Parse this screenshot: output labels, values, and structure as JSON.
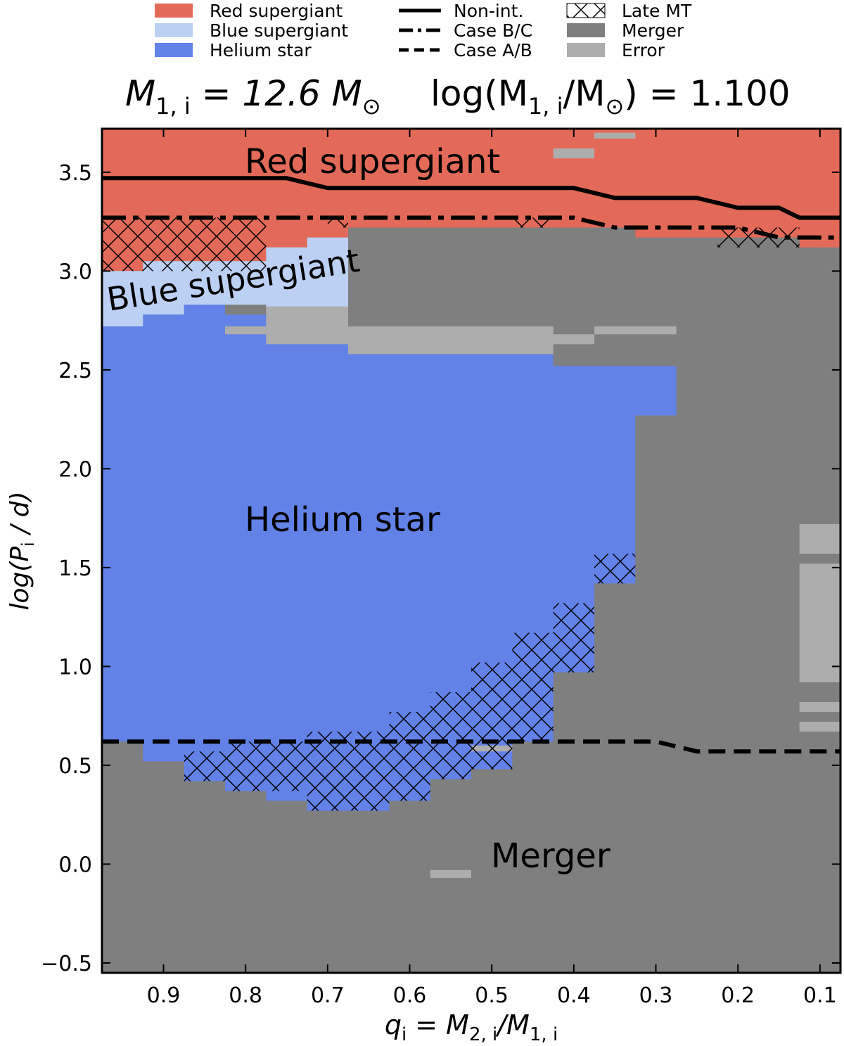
{
  "legend": {
    "regions": [
      {
        "label": "Red supergiant",
        "color": "#e36a59"
      },
      {
        "label": "Blue supergiant",
        "color": "#bcd0f4"
      },
      {
        "label": "Helium star",
        "color": "#6282e8"
      }
    ],
    "lines": [
      {
        "label": "Non-int.",
        "style": "solid"
      },
      {
        "label": "Case B/C",
        "style": "dashdot"
      },
      {
        "label": "Case A/B",
        "style": "dashed"
      }
    ],
    "others": [
      {
        "label": "Late MT",
        "style": "hatch"
      },
      {
        "label": "Merger",
        "color": "#7f7f7f"
      },
      {
        "label": "Error",
        "color": "#adadad"
      }
    ]
  },
  "title": {
    "left": {
      "main": "M",
      "sub": "1, i",
      "rest": " = 12.6 M",
      "sun": "⊙"
    },
    "right": {
      "pre": "log(M",
      "sub": "1, i",
      "mid": "/M",
      "sun": "⊙",
      "rest": ") = 1.100"
    }
  },
  "region_labels": {
    "red": "Red supergiant",
    "blue": "Blue supergiant",
    "helium": "Helium star",
    "merger": "Merger"
  },
  "axes": {
    "ylabel": {
      "pre": "log(P",
      "sub": "i",
      "post": " / d)"
    },
    "xlabel": {
      "q": "q",
      "qsub": "i",
      "eq": " = M",
      "sub2": "2, i",
      "slash": "/M",
      "sub1": "1, i"
    }
  },
  "chart_data": {
    "type": "heatmap",
    "xlim": [
      0.975,
      0.075
    ],
    "ylim": [
      -0.55,
      3.72
    ],
    "x_ticks": [
      "0.9",
      "0.8",
      "0.7",
      "0.6",
      "0.5",
      "0.4",
      "0.3",
      "0.2",
      "0.1"
    ],
    "y_ticks": [
      "−0.5",
      "0.0",
      "0.5",
      "1.0",
      "1.5",
      "2.0",
      "2.5",
      "3.0",
      "3.5"
    ],
    "colors": {
      "red": "#e36a59",
      "blue": "#bcd0f4",
      "helium": "#6282e8",
      "merger": "#7f7f7f",
      "error": "#adadad"
    },
    "outcome_regions": [
      {
        "outcome": "red",
        "bounds": [
          [
            0.975,
            3.0
          ],
          [
            0.925,
            3.0
          ],
          [
            0.925,
            3.05
          ],
          [
            0.775,
            3.05
          ],
          [
            0.775,
            3.12
          ],
          [
            0.725,
            3.12
          ],
          [
            0.725,
            3.17
          ],
          [
            0.675,
            3.17
          ],
          [
            0.675,
            3.22
          ],
          [
            0.325,
            3.22
          ],
          [
            0.325,
            3.17
          ],
          [
            0.125,
            3.17
          ],
          [
            0.125,
            3.12
          ],
          [
            0.075,
            3.12
          ],
          [
            0.075,
            3.72
          ],
          [
            0.975,
            3.72
          ]
        ]
      },
      {
        "outcome": "blue",
        "bounds": [
          [
            0.975,
            2.72
          ],
          [
            0.925,
            2.72
          ],
          [
            0.925,
            2.78
          ],
          [
            0.875,
            2.78
          ],
          [
            0.875,
            2.83
          ],
          [
            0.775,
            2.83
          ],
          [
            0.775,
            3.12
          ],
          [
            0.725,
            3.12
          ],
          [
            0.725,
            3.17
          ],
          [
            0.675,
            3.17
          ],
          [
            0.675,
            3.22
          ],
          [
            0.675,
            2.82
          ],
          [
            0.775,
            2.82
          ],
          [
            0.775,
            3.05
          ],
          [
            0.925,
            3.05
          ],
          [
            0.925,
            3.0
          ],
          [
            0.975,
            3.0
          ]
        ]
      },
      {
        "outcome": "helium",
        "bounds": [
          [
            0.975,
            2.72
          ],
          [
            0.925,
            2.72
          ],
          [
            0.925,
            2.78
          ],
          [
            0.875,
            2.78
          ],
          [
            0.875,
            2.83
          ],
          [
            0.825,
            2.83
          ],
          [
            0.825,
            2.78
          ],
          [
            0.775,
            2.78
          ],
          [
            0.775,
            2.63
          ],
          [
            0.675,
            2.63
          ],
          [
            0.675,
            2.58
          ],
          [
            0.425,
            2.58
          ],
          [
            0.425,
            2.52
          ],
          [
            0.275,
            2.52
          ],
          [
            0.275,
            2.27
          ],
          [
            0.325,
            2.27
          ],
          [
            0.325,
            1.42
          ],
          [
            0.375,
            1.42
          ],
          [
            0.375,
            0.97
          ],
          [
            0.425,
            0.97
          ],
          [
            0.425,
            0.62
          ],
          [
            0.475,
            0.62
          ],
          [
            0.475,
            0.48
          ],
          [
            0.525,
            0.48
          ],
          [
            0.525,
            0.43
          ],
          [
            0.575,
            0.43
          ],
          [
            0.575,
            0.32
          ],
          [
            0.625,
            0.32
          ],
          [
            0.625,
            0.27
          ],
          [
            0.725,
            0.27
          ],
          [
            0.725,
            0.32
          ],
          [
            0.775,
            0.32
          ],
          [
            0.775,
            0.37
          ],
          [
            0.825,
            0.37
          ],
          [
            0.825,
            0.42
          ],
          [
            0.875,
            0.42
          ],
          [
            0.875,
            0.52
          ],
          [
            0.925,
            0.52
          ],
          [
            0.925,
            0.62
          ],
          [
            0.975,
            0.62
          ]
        ]
      },
      {
        "outcome": "merger",
        "note": "remaining area"
      }
    ],
    "error_cells": [
      {
        "q": [
          0.825,
          0.775
        ],
        "logP": [
          2.68,
          2.72
        ]
      },
      {
        "q": [
          0.775,
          0.675
        ],
        "logP": [
          2.63,
          2.82
        ]
      },
      {
        "q": [
          0.675,
          0.425
        ],
        "logP": [
          2.58,
          2.72
        ]
      },
      {
        "q": [
          0.575,
          0.525
        ],
        "logP": [
          -0.07,
          -0.03
        ]
      },
      {
        "q": [
          0.525,
          0.475
        ],
        "logP": [
          0.57,
          0.6
        ]
      },
      {
        "q": [
          0.425,
          0.375
        ],
        "logP": [
          2.63,
          2.68
        ]
      },
      {
        "q": [
          0.375,
          0.275
        ],
        "logP": [
          2.68,
          2.72
        ]
      },
      {
        "q": [
          0.425,
          0.375
        ],
        "logP": [
          3.57,
          3.62
        ]
      },
      {
        "q": [
          0.375,
          0.325
        ],
        "logP": [
          3.67,
          3.7
        ]
      },
      {
        "q": [
          0.125,
          0.075
        ],
        "logP": [
          1.57,
          1.72
        ]
      },
      {
        "q": [
          0.125,
          0.075
        ],
        "logP": [
          0.92,
          1.52
        ]
      },
      {
        "q": [
          0.125,
          0.075
        ],
        "logP": [
          0.77,
          0.82
        ]
      },
      {
        "q": [
          0.125,
          0.075
        ],
        "logP": [
          0.67,
          0.72
        ]
      }
    ],
    "boundaries": [
      {
        "name": "Non-int.",
        "style": "solid",
        "points": [
          [
            0.975,
            3.47
          ],
          [
            0.75,
            3.47
          ],
          [
            0.7,
            3.42
          ],
          [
            0.4,
            3.42
          ],
          [
            0.35,
            3.37
          ],
          [
            0.25,
            3.37
          ],
          [
            0.2,
            3.32
          ],
          [
            0.15,
            3.32
          ],
          [
            0.125,
            3.27
          ],
          [
            0.075,
            3.27
          ]
        ]
      },
      {
        "name": "Case B/C",
        "style": "dashdot",
        "points": [
          [
            0.975,
            3.27
          ],
          [
            0.4,
            3.27
          ],
          [
            0.35,
            3.22
          ],
          [
            0.2,
            3.22
          ],
          [
            0.15,
            3.17
          ],
          [
            0.075,
            3.17
          ]
        ]
      },
      {
        "name": "Case A/B",
        "style": "dashed",
        "points": [
          [
            0.975,
            0.62
          ],
          [
            0.3,
            0.62
          ],
          [
            0.25,
            0.57
          ],
          [
            0.075,
            0.57
          ]
        ]
      }
    ],
    "late_mt_hatch": [
      {
        "q": [
          0.975,
          0.775
        ],
        "logP": [
          3.0,
          3.27
        ]
      },
      {
        "q": [
          0.7,
          0.675
        ],
        "logP": [
          3.22,
          3.27
        ]
      },
      {
        "q": [
          0.475,
          0.425
        ],
        "logP": [
          3.22,
          3.27
        ]
      },
      {
        "q": [
          0.225,
          0.125
        ],
        "logP": [
          3.12,
          3.22
        ]
      },
      {
        "q": [
          0.375,
          0.325
        ],
        "logP": [
          1.42,
          1.57
        ]
      },
      {
        "q": [
          0.425,
          0.375
        ],
        "logP": [
          0.97,
          1.32
        ]
      },
      {
        "q": [
          0.475,
          0.425
        ],
        "logP": [
          0.62,
          1.17
        ]
      },
      {
        "q": [
          0.525,
          0.475
        ],
        "logP": [
          0.48,
          1.02
        ]
      },
      {
        "q": [
          0.575,
          0.525
        ],
        "logP": [
          0.43,
          0.87
        ]
      },
      {
        "q": [
          0.625,
          0.575
        ],
        "logP": [
          0.32,
          0.77
        ]
      },
      {
        "q": [
          0.725,
          0.625
        ],
        "logP": [
          0.27,
          0.67
        ]
      },
      {
        "q": [
          0.825,
          0.725
        ],
        "logP": [
          0.37,
          0.62
        ]
      },
      {
        "q": [
          0.875,
          0.825
        ],
        "logP": [
          0.42,
          0.57
        ]
      }
    ]
  }
}
